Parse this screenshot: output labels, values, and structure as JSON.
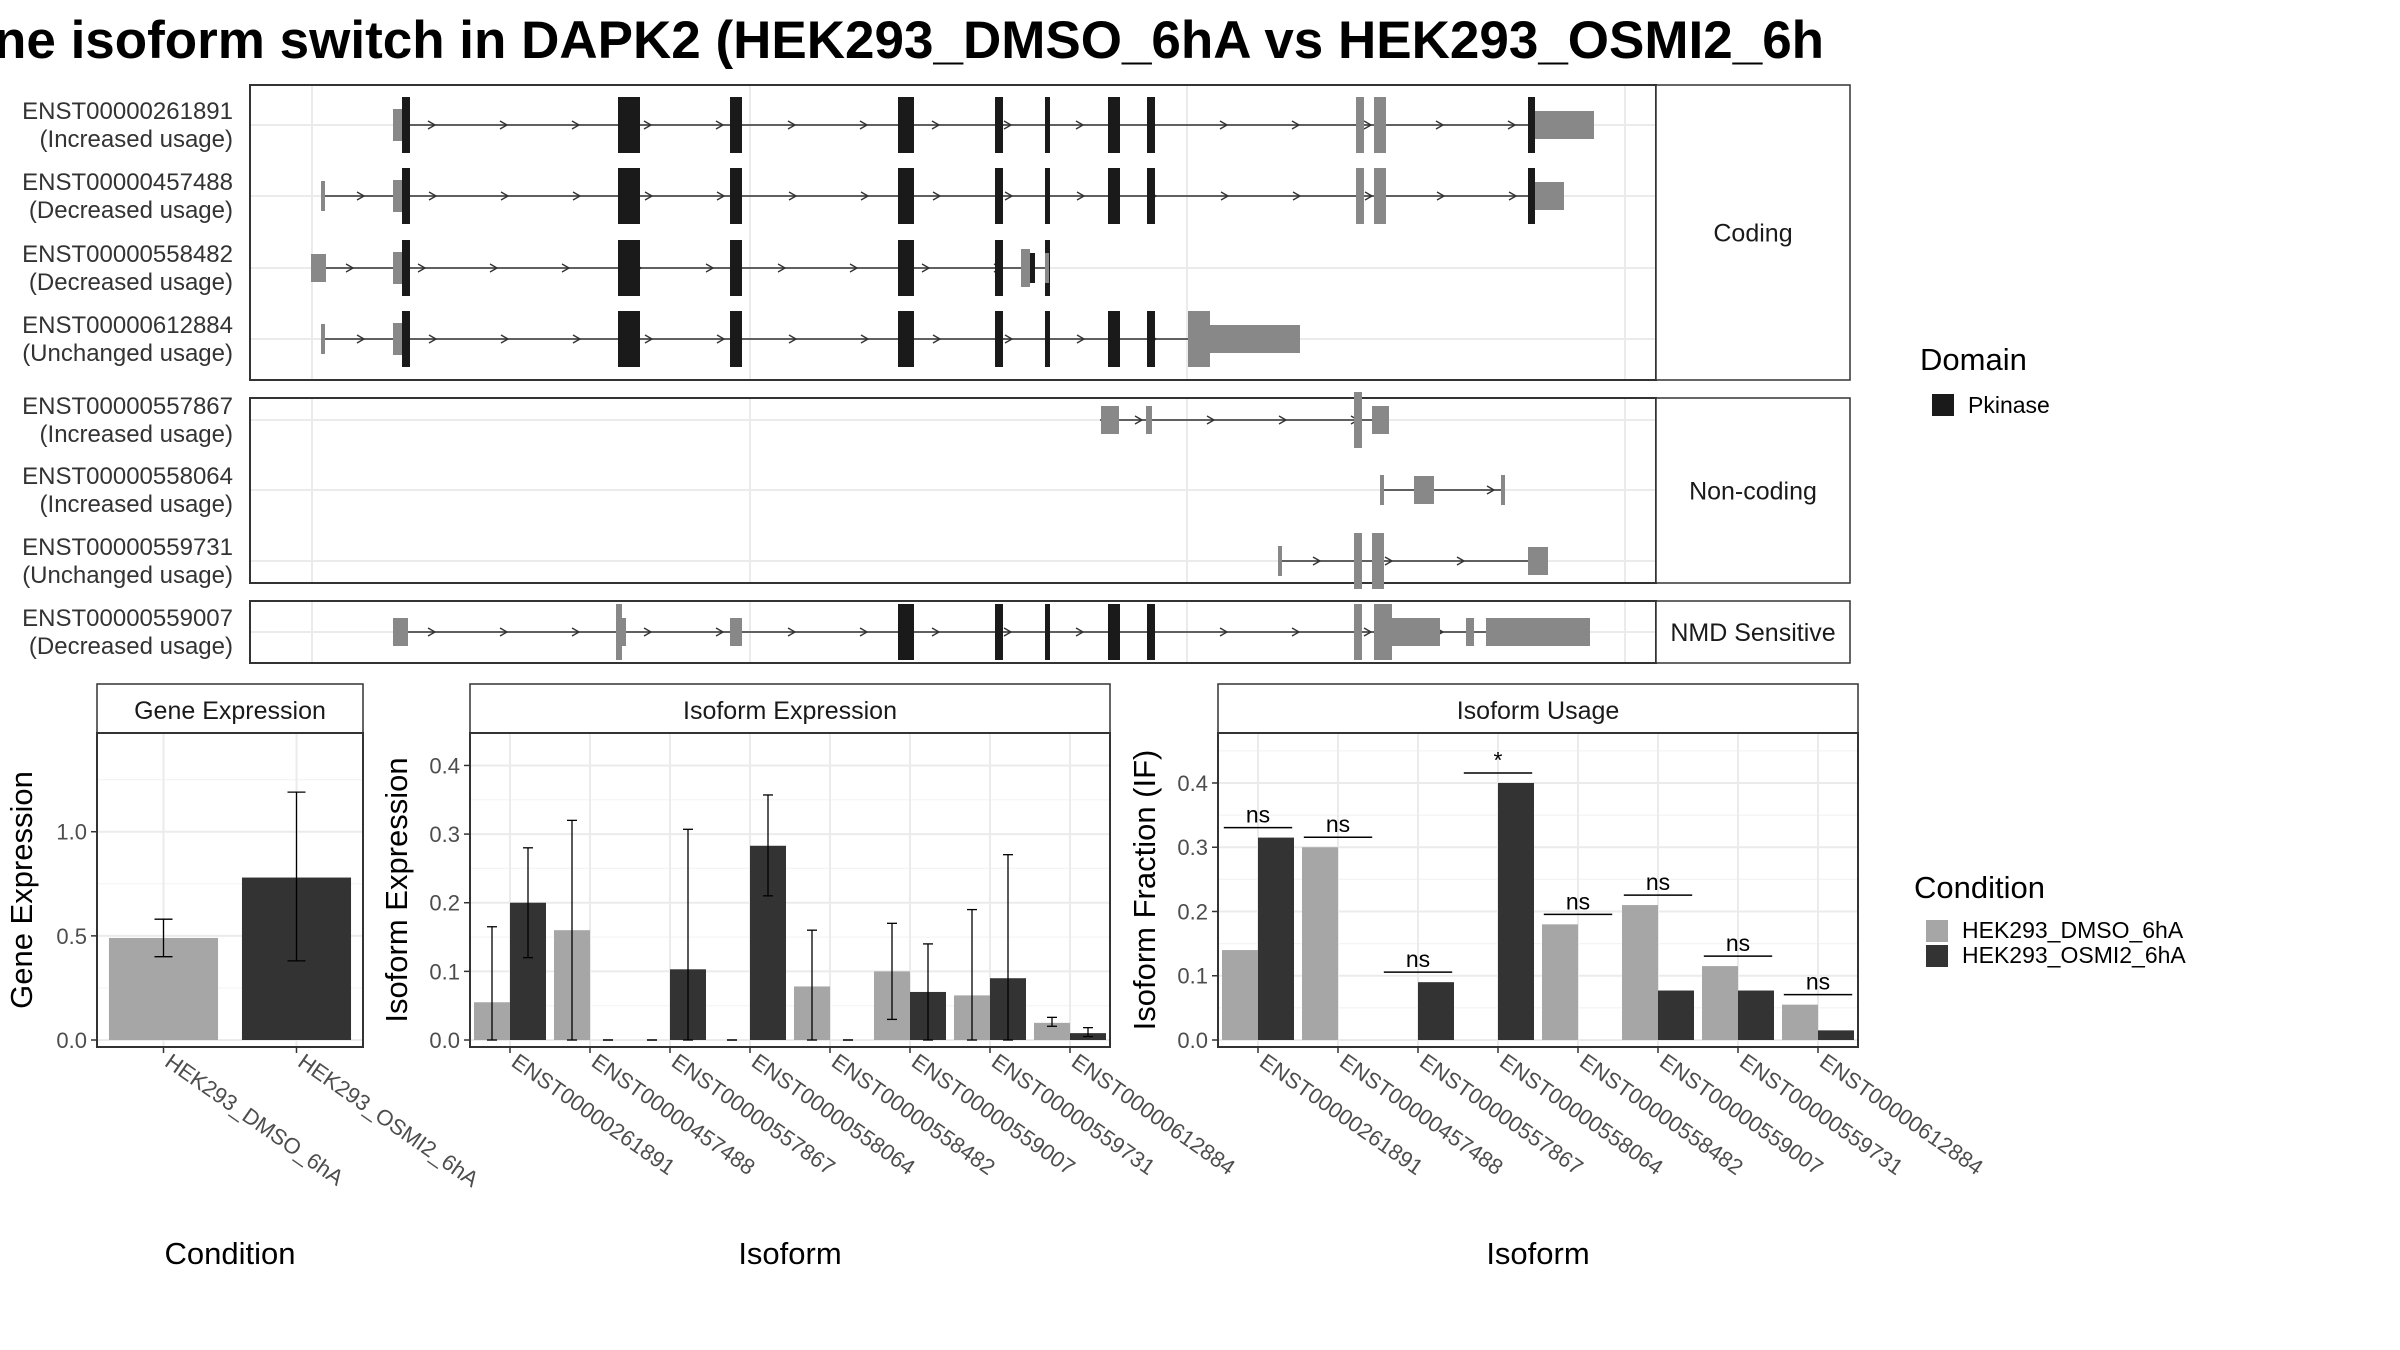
{
  "title": "ne isoform switch in DAPK2 (HEK293_DMSO_6hA vs HEK293_OSMI2_6h",
  "colors": {
    "dmso": "#a6a6a6",
    "osmi": "#333333",
    "exon_domain": "#1a1a1a",
    "exon_plain": "#888888"
  },
  "structure": {
    "groups": [
      {
        "name": "Coding",
        "transcripts": [
          {
            "id": "ENST00000261891",
            "usage": "(Increased usage)"
          },
          {
            "id": "ENST00000457488",
            "usage": "(Decreased usage)"
          },
          {
            "id": "ENST00000558482",
            "usage": "(Decreased usage)"
          },
          {
            "id": "ENST00000612884",
            "usage": "(Unchanged usage)"
          }
        ]
      },
      {
        "name": "Non-coding",
        "transcripts": [
          {
            "id": "ENST00000557867",
            "usage": "(Increased usage)"
          },
          {
            "id": "ENST00000558064",
            "usage": "(Increased usage)"
          },
          {
            "id": "ENST00000559731",
            "usage": "(Unchanged usage)"
          }
        ]
      },
      {
        "name": "NMD Sensitive",
        "transcripts": [
          {
            "id": "ENST00000559007",
            "usage": "(Decreased usage)"
          }
        ]
      }
    ]
  },
  "legend_domain": {
    "title": "Domain",
    "items": [
      {
        "label": "Pkinase",
        "color": "#1a1a1a"
      }
    ]
  },
  "legend_condition": {
    "title": "Condition",
    "items": [
      {
        "label": "HEK293_DMSO_6hA",
        "color": "#a6a6a6"
      },
      {
        "label": "HEK293_OSMI2_6hA",
        "color": "#333333"
      }
    ]
  },
  "chart_data": [
    {
      "type": "bar",
      "title": "Gene Expression",
      "xlabel": "Condition",
      "ylabel": "Gene Expression",
      "ylim": [
        0,
        1.45
      ],
      "yticks": [
        "0.0",
        "0.5",
        "1.0"
      ],
      "categories": [
        "HEK293_DMSO_6hA",
        "HEK293_OSMI2_6hA"
      ],
      "values": [
        0.49,
        0.78
      ],
      "error": [
        [
          0.4,
          0.58
        ],
        [
          0.38,
          1.19
        ]
      ]
    },
    {
      "type": "bar",
      "title": "Isoform Expression",
      "xlabel": "Isoform",
      "ylabel": "Isoform Expression",
      "ylim": [
        0,
        0.44
      ],
      "yticks": [
        "0.0",
        "0.1",
        "0.2",
        "0.3",
        "0.4"
      ],
      "categories": [
        "ENST00000261891",
        "ENST00000457488",
        "ENST00000557867",
        "ENST00000558064",
        "ENST00000558482",
        "ENST00000559007",
        "ENST00000559731",
        "ENST00000612884"
      ],
      "series": [
        {
          "name": "HEK293_DMSO_6hA",
          "values": [
            0.055,
            0.16,
            0.0,
            0.0,
            0.078,
            0.1,
            0.065,
            0.025
          ],
          "error": [
            [
              0,
              0.165
            ],
            [
              0,
              0.32
            ],
            [
              0,
              0
            ],
            [
              0,
              0
            ],
            [
              0,
              0.16
            ],
            [
              0.03,
              0.17
            ],
            [
              0,
              0.19
            ],
            [
              0.02,
              0.033
            ]
          ]
        },
        {
          "name": "HEK293_OSMI2_6hA",
          "values": [
            0.2,
            0.0,
            0.103,
            0.283,
            0.0,
            0.07,
            0.09,
            0.01
          ],
          "error": [
            [
              0.12,
              0.28
            ],
            [
              0,
              0
            ],
            [
              0,
              0.307
            ],
            [
              0.21,
              0.357
            ],
            [
              0,
              0
            ],
            [
              0,
              0.14
            ],
            [
              0,
              0.27
            ],
            [
              0.005,
              0.018
            ]
          ]
        }
      ]
    },
    {
      "type": "bar",
      "title": "Isoform Usage",
      "xlabel": "Isoform",
      "ylabel": "Isoform Fraction (IF)",
      "ylim": [
        0,
        0.47
      ],
      "yticks": [
        "0.0",
        "0.1",
        "0.2",
        "0.3",
        "0.4"
      ],
      "categories": [
        "ENST00000261891",
        "ENST00000457488",
        "ENST00000557867",
        "ENST00000558064",
        "ENST00000558482",
        "ENST00000559007",
        "ENST00000559731",
        "ENST00000612884"
      ],
      "series": [
        {
          "name": "HEK293_DMSO_6hA",
          "values": [
            0.14,
            0.3,
            0.0,
            0.0,
            0.18,
            0.21,
            0.115,
            0.055
          ]
        },
        {
          "name": "HEK293_OSMI2_6hA",
          "values": [
            0.315,
            0.0,
            0.09,
            0.4,
            0.0,
            0.077,
            0.077,
            0.015
          ]
        }
      ],
      "significance": [
        "ns",
        "ns",
        "ns",
        "*",
        "ns",
        "ns",
        "ns",
        "ns"
      ]
    }
  ]
}
